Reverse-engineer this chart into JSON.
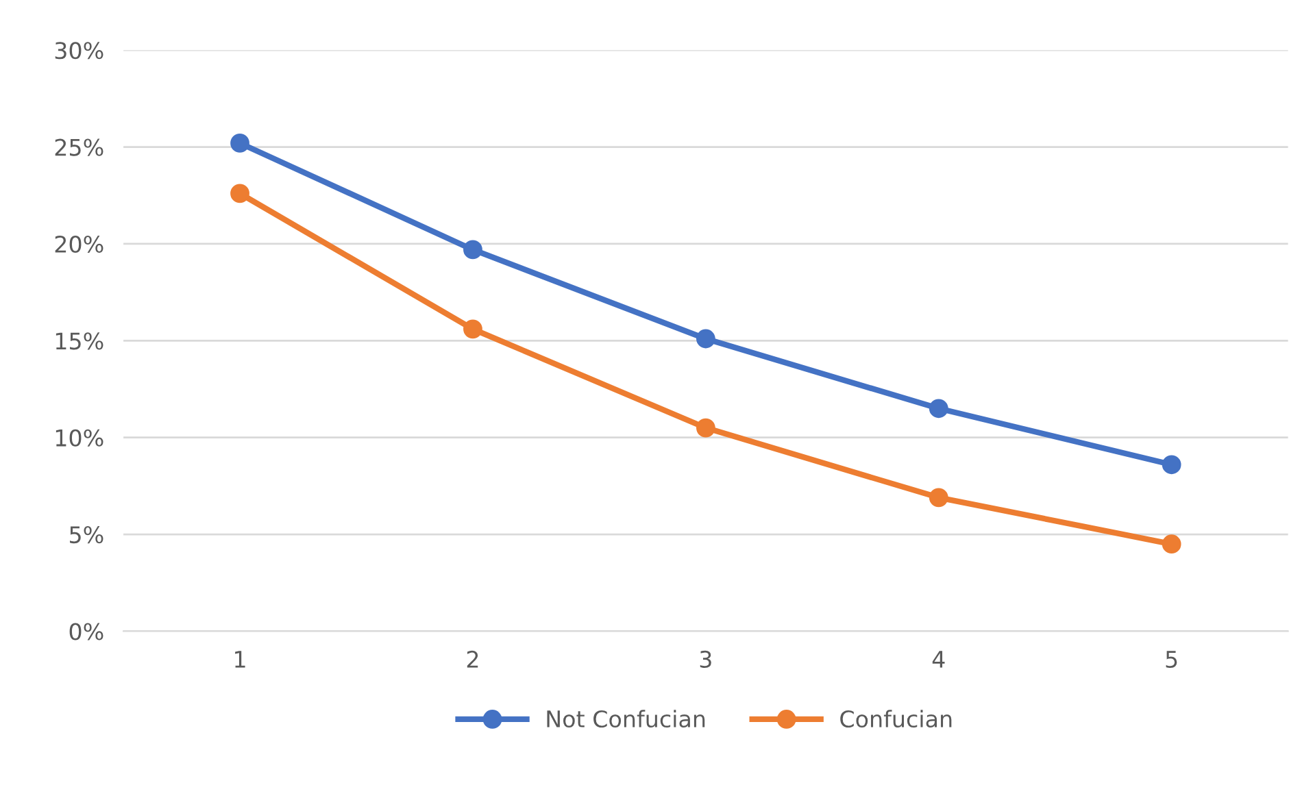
{
  "chart_data": {
    "type": "line",
    "categories": [
      "1",
      "2",
      "3",
      "4",
      "5"
    ],
    "series": [
      {
        "name": "Not Confucian",
        "color": "#4472c4",
        "values": [
          25.2,
          19.7,
          15.1,
          11.5,
          8.6
        ]
      },
      {
        "name": "Confucian",
        "color": "#ed7d31",
        "values": [
          22.6,
          15.6,
          10.5,
          6.9,
          4.5
        ]
      }
    ],
    "ylim": [
      0,
      30
    ],
    "yticks": [
      {
        "value": 0,
        "label": "0%"
      },
      {
        "value": 5,
        "label": "5%"
      },
      {
        "value": 10,
        "label": "10%"
      },
      {
        "value": 15,
        "label": "15%"
      },
      {
        "value": 20,
        "label": "20%"
      },
      {
        "value": 25,
        "label": "25%"
      },
      {
        "value": 30,
        "label": "30%"
      }
    ],
    "grid": "y",
    "legend": "bottom",
    "marker": "circle",
    "line_style": "solid"
  }
}
